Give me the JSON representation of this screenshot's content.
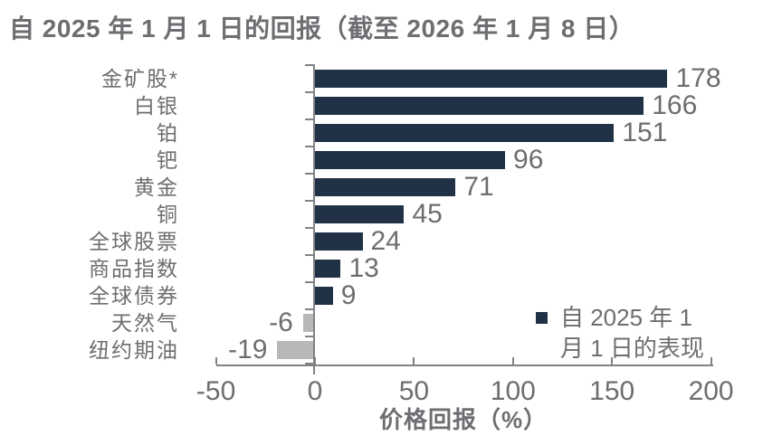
{
  "title": "自 2025 年 1 月 1 日的回报（截至 2026 年 1 月 8 日）",
  "legend": {
    "line1": "自 2025 年 1",
    "line2": "月 1 日的表现",
    "full": "自 2025 年 1 月 1 日的表现"
  },
  "chart_data": {
    "type": "bar",
    "orientation": "horizontal",
    "title": "自 2025 年 1 月 1 日的回报（截至 2026 年 1 月 8 日）",
    "categories": [
      "金矿股*",
      "白银",
      "铂",
      "钯",
      "黄金",
      "铜",
      "全球股票",
      "商品指数",
      "全球债券",
      "天然气",
      "纽约期油"
    ],
    "values": [
      178,
      166,
      151,
      96,
      71,
      45,
      24,
      13,
      9,
      -6,
      -19
    ],
    "xlabel": "价格回报（%）",
    "ylabel": "",
    "xticks": [
      -50,
      0,
      50,
      100,
      150,
      200
    ],
    "xlim": [
      -50,
      200
    ],
    "grid": false,
    "legend_entries": [
      "自 2025 年 1 月 1 日的表现"
    ],
    "legend_position": "inside-bottom-right",
    "colors": {
      "positive_bar": "#213247",
      "negative_bar": "#b6b8ba",
      "axis": "#808285",
      "text": "#6d6e71"
    }
  }
}
